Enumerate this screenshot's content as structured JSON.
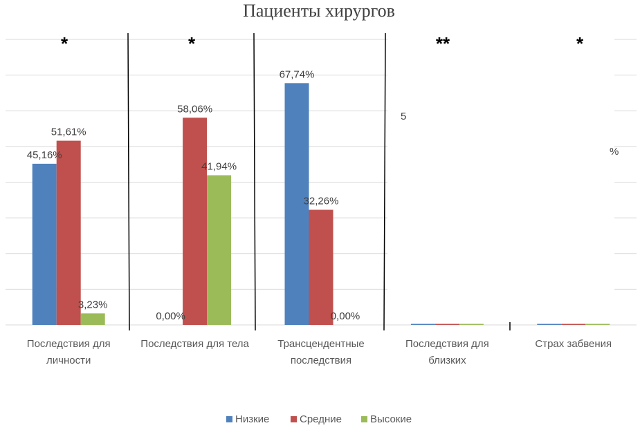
{
  "chart_data": {
    "type": "bar",
    "title": "Пациенты хирургов",
    "categories": [
      [
        "Последствия для",
        "личности"
      ],
      [
        "Последствия для тела"
      ],
      [
        "Трансцендентные",
        "последствия"
      ],
      [
        "Последствия для",
        "близких"
      ],
      [
        "Страх забвения"
      ]
    ],
    "series": [
      {
        "name": "Низкие",
        "color": "#4F81BD",
        "values": [
          45.16,
          0.0,
          67.74,
          0,
          0
        ],
        "labels": [
          "45,16%",
          "0,00%",
          "67,74%",
          "",
          ""
        ]
      },
      {
        "name": "Средние",
        "color": "#C0504D",
        "values": [
          51.61,
          58.06,
          32.26,
          0,
          0
        ],
        "labels": [
          "51,61%",
          "58,06%",
          "32,26%",
          "",
          ""
        ]
      },
      {
        "name": "Высокие",
        "color": "#9BBB59",
        "values": [
          3.23,
          41.94,
          0.0,
          0,
          0
        ],
        "labels": [
          "3,23%",
          "41,94%",
          "0,00%",
          "",
          ""
        ]
      }
    ],
    "significance": [
      "*",
      "*",
      "",
      "**",
      "*"
    ],
    "ylim": [
      0,
      80
    ],
    "gridlines": [
      10,
      20,
      30,
      40,
      50,
      60,
      70,
      80
    ],
    "grid": true,
    "legend": "bottom",
    "fragments": [
      "5",
      "%"
    ]
  }
}
